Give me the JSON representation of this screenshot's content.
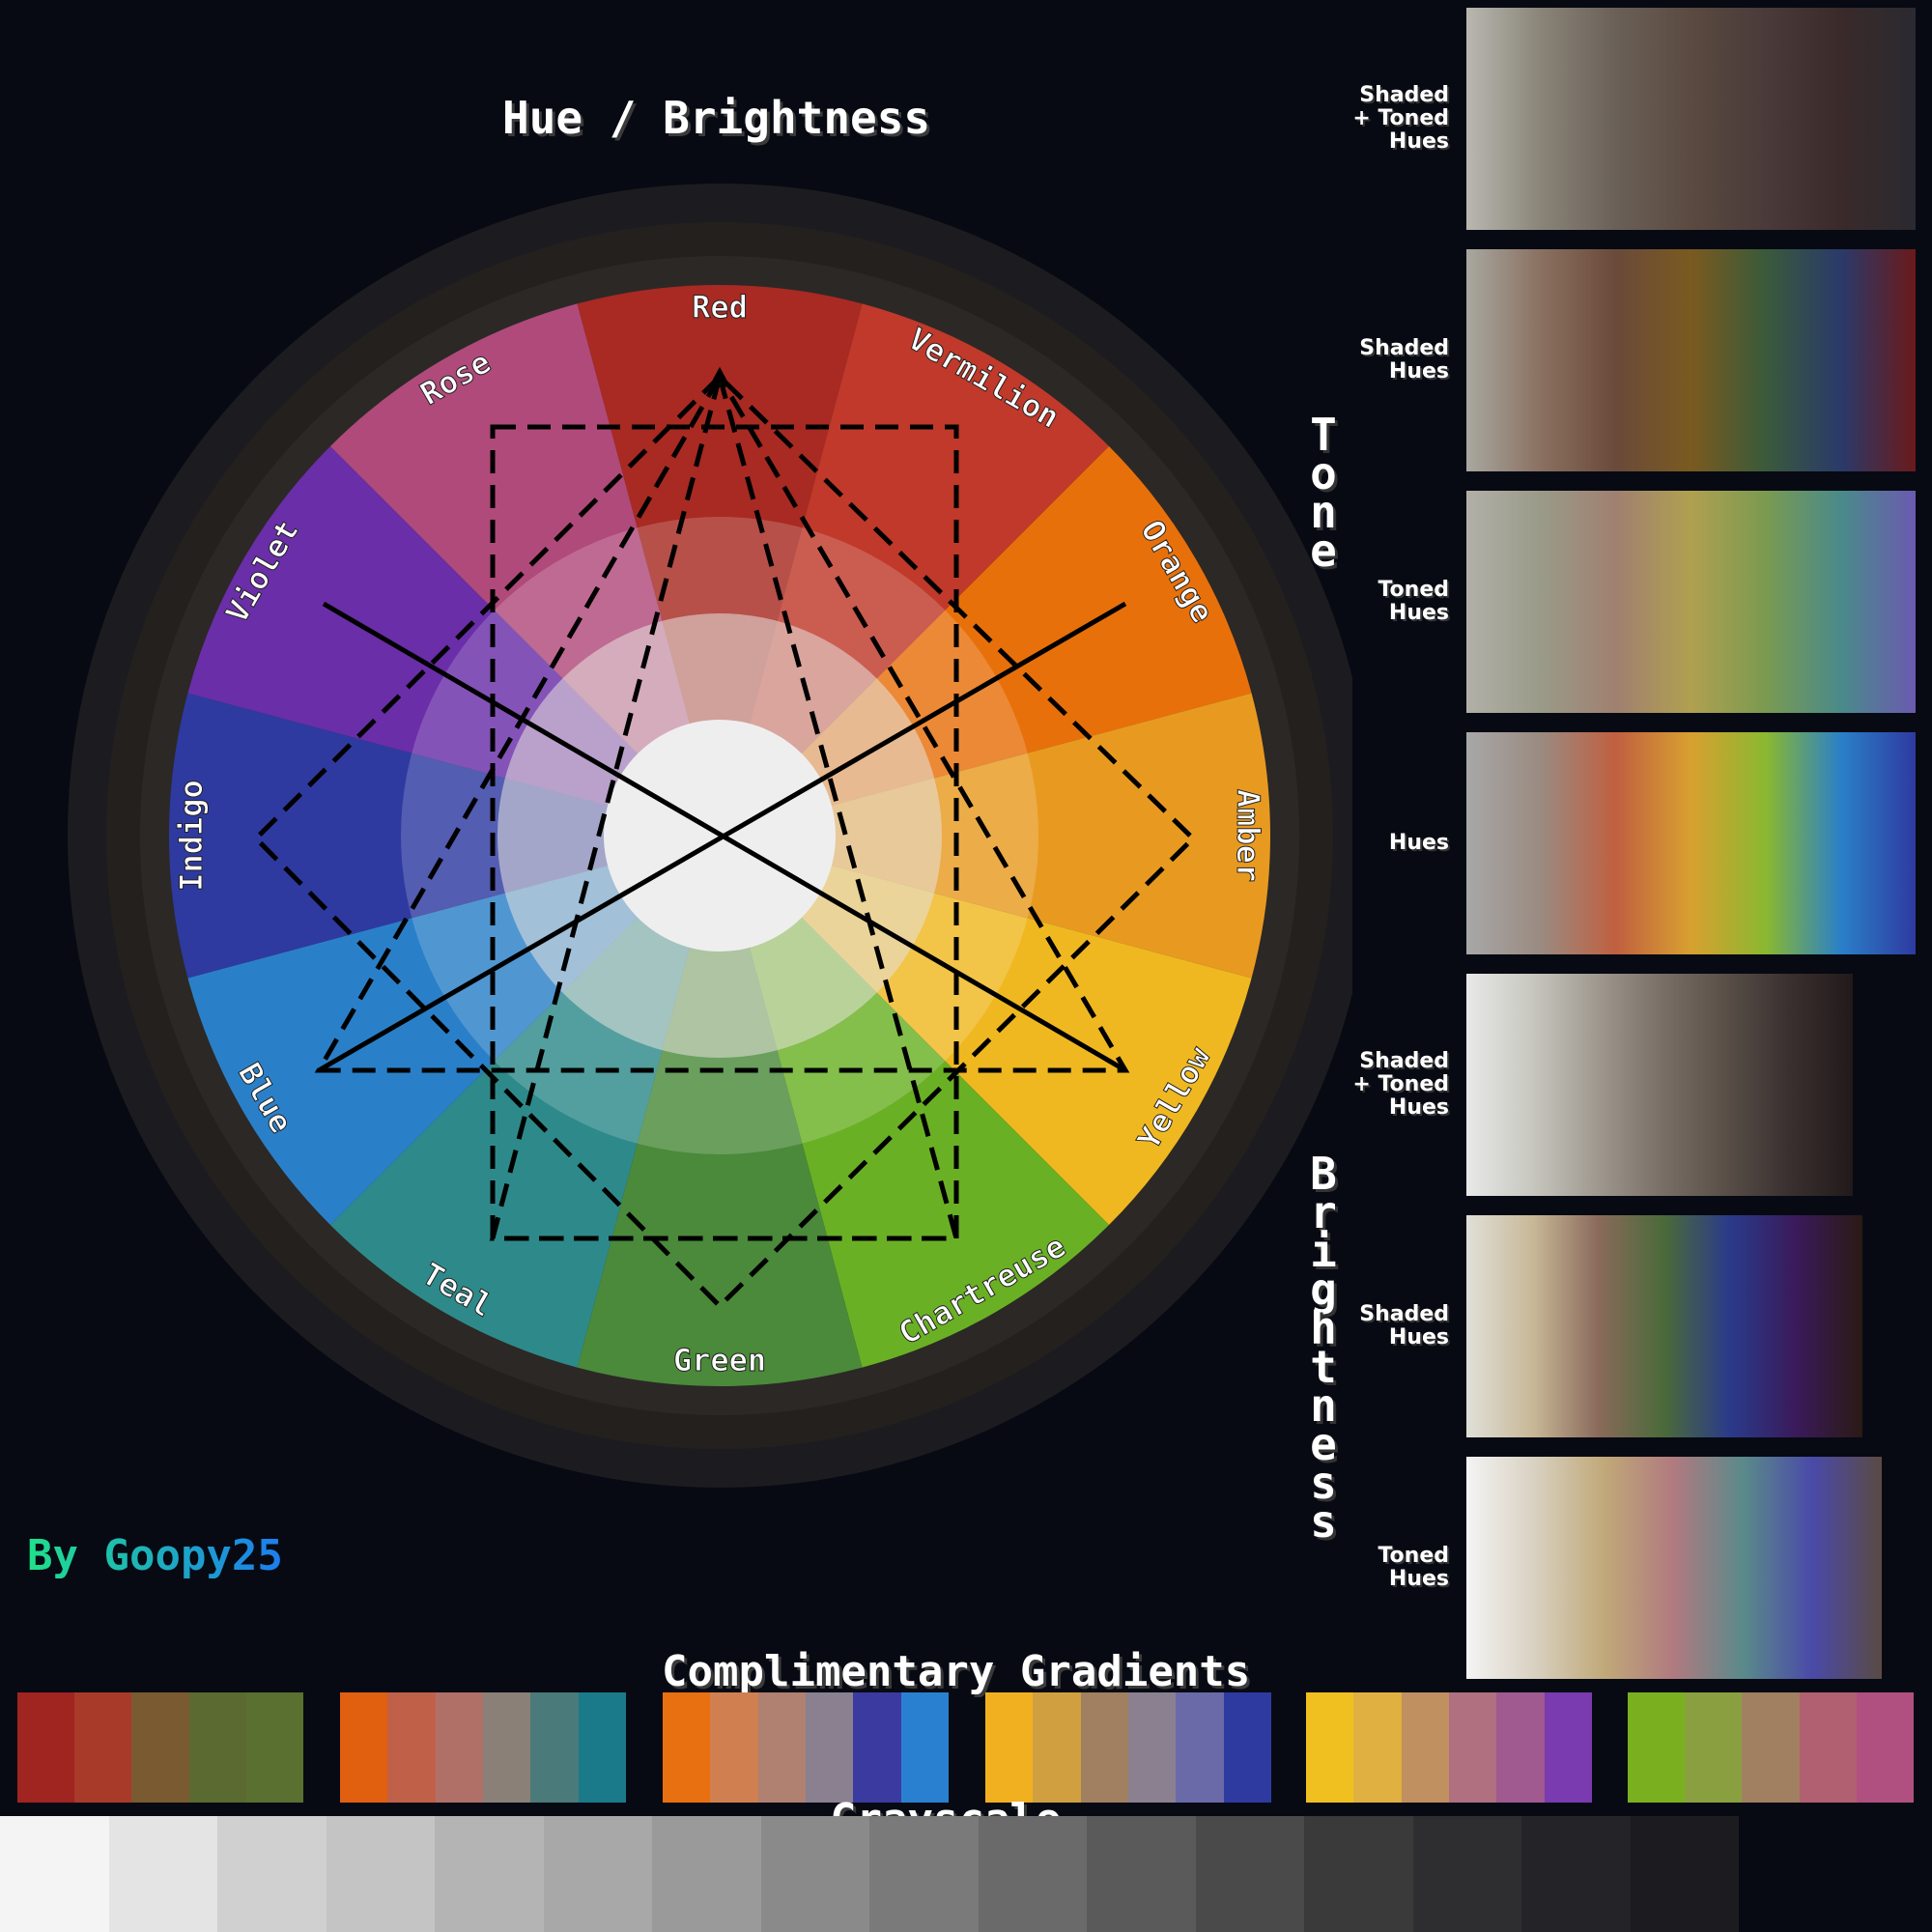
{
  "title": "Hue / Brightness",
  "hues": [
    "Red",
    "Vermilion",
    "Orange",
    "Amber",
    "Yellow",
    "Chartreuse",
    "Green",
    "Teal",
    "Blue",
    "Indigo",
    "Violet",
    "Rose"
  ],
  "hue_colors": {
    "Red": "#a82a22",
    "Vermilion": "#c0392a",
    "Orange": "#e8700a",
    "Amber": "#e89a20",
    "Yellow": "#f0b820",
    "Chartreuse": "#6ab024",
    "Green": "#4a8a3a",
    "Teal": "#2e8a8a",
    "Blue": "#2a80c8",
    "Indigo": "#2e3aa0",
    "Violet": "#6a2ea8",
    "Rose": "#b04a7a"
  },
  "axis_labels": {
    "tone": "Tone",
    "brightness": "Brightness"
  },
  "signature": "By Goopy25",
  "side_panels": [
    {
      "label": "Shaded\n+ Toned\nHues",
      "colors": [
        "#b8b8b0",
        "#8a8478",
        "#6a6058",
        "#5a4a40",
        "#4a3a3a",
        "#3a2a2a",
        "#2a2a30"
      ]
    },
    {
      "label": "Shaded\nHues",
      "colors": [
        "#a8a8a0",
        "#8a7060",
        "#6a4a3a",
        "#7a5a20",
        "#3a5a3a",
        "#2a3a6a",
        "#6a1a1a"
      ]
    },
    {
      "label": "Toned\nHues",
      "colors": [
        "#b0b0a8",
        "#9a9a88",
        "#a08070",
        "#b0a050",
        "#7a9a50",
        "#4a8a8a",
        "#6a5ab0"
      ]
    },
    {
      "label": "Hues",
      "colors": [
        "#a8a8a8",
        "#9a8a80",
        "#c06040",
        "#d8a030",
        "#8ab830",
        "#2a80c8",
        "#2e3aa0"
      ]
    },
    {
      "label": "Shaded\n+ Toned\nHues",
      "colors": [
        "#e8e8e8",
        "#c8c8c0",
        "#a09a90",
        "#7a7068",
        "#5a5048",
        "#3a3030",
        "#221a1a"
      ]
    },
    {
      "label": "Shaded\nHues",
      "colors": [
        "#e0e0d8",
        "#c8b898",
        "#8a6a5a",
        "#4a6a3a",
        "#2a3a8a",
        "#3a1a5a",
        "#2a1a14"
      ]
    },
    {
      "label": "Toned\nHues",
      "colors": [
        "#f4f4f4",
        "#d8d0c0",
        "#c0a878",
        "#b07a80",
        "#5a8a8a",
        "#4a4aa8",
        "#5a4a44"
      ]
    }
  ],
  "gradients_title": "Complimentary Gradients",
  "gradients": [
    [
      "#a02420",
      "#a83a2a",
      "#7a5a30",
      "#5a6a30",
      "#5a7030"
    ],
    [
      "#e06010",
      "#c06048",
      "#b07068",
      "#8a8078",
      "#4a7a7a",
      "#1a7a8a"
    ],
    [
      "#e87010",
      "#d08050",
      "#b08070",
      "#8a8090",
      "#3a3aa0",
      "#2a80d0"
    ],
    [
      "#f0b020",
      "#d0a040",
      "#a08060",
      "#8a8090",
      "#6a6aa8",
      "#2e3aa0"
    ],
    [
      "#f0c020",
      "#e0b040",
      "#c09060",
      "#b07080",
      "#a05a90",
      "#7a3ab0"
    ],
    [
      "#7ab020",
      "#8aa040",
      "#a08060",
      "#b06070",
      "#b05080"
    ]
  ],
  "grayscale_title": "Grayscale",
  "grayscale": [
    "#f4f4f4",
    "#e4e4e4",
    "#d0d0d0",
    "#c4c4c4",
    "#b4b4b4",
    "#a8a8a8",
    "#9a9a9a",
    "#8a8a8a",
    "#7a7a7a",
    "#6a6a6a",
    "#5a5a5a",
    "#4a4a4a",
    "#3a3a3a",
    "#2e2e30",
    "#242428",
    "#1c1c20"
  ]
}
